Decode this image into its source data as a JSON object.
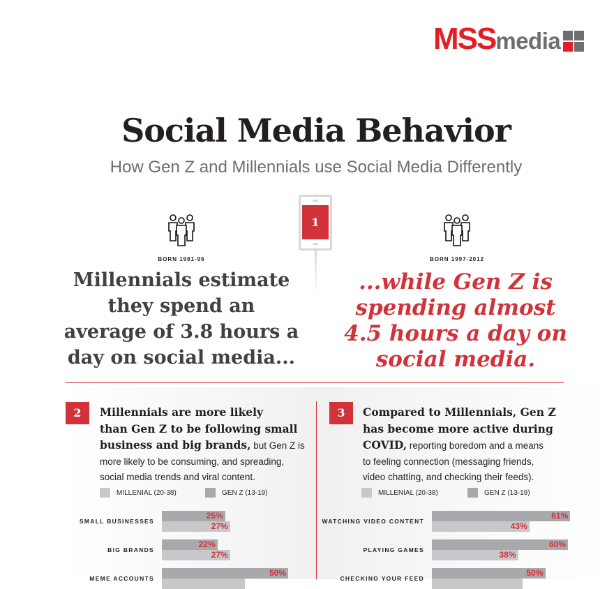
{
  "logo": {
    "text_red": "MSS",
    "text_gray": "media"
  },
  "header": {
    "title": "Social Media Behavior",
    "subtitle": "How Gen Z and Millennials use Social Media Differently"
  },
  "section1": {
    "number": "1",
    "left": {
      "born": "BORN 1981-96",
      "lines": [
        "Millennials estimate",
        "they spend an",
        "average of 3.8 hours a",
        "day on social media..."
      ]
    },
    "right": {
      "born": "BORN 1997-2012",
      "lines": [
        "...while Gen Z is",
        "spending almost",
        "4.5 hours a day on",
        "social media."
      ]
    }
  },
  "colors": {
    "accent": "#d2323a",
    "millennial": "#c7c8ca",
    "genz": "#a7a9ac"
  },
  "section2": {
    "number": "2",
    "bold": [
      "Millennials are more likely",
      "than Gen Z to be following small",
      "business and big brands,"
    ],
    "rest": [
      " but Gen Z is",
      "more likely to be consuming, and spreading,",
      "social media trends and viral content."
    ],
    "legend": [
      "MILLENIAL (20-38)",
      "GEN Z (13-19)"
    ]
  },
  "section3": {
    "number": "3",
    "bold": [
      "Compared to Millennials, Gen Z",
      "has become more active during",
      "COVID,"
    ],
    "rest": [
      " reporting boredom and a means",
      "to feeling connection (messaging friends,",
      "video chatting, and checking their feeds)."
    ],
    "legend": [
      "MILLENIAL (20-38)",
      "GEN Z (13-19)"
    ]
  },
  "chart_data": [
    {
      "type": "bar",
      "orientation": "horizontal",
      "categories": [
        "SMALL BUSINESSES",
        "BIG BRANDS",
        "MEME ACCOUNTS"
      ],
      "series": [
        {
          "name": "GEN Z (13-19)",
          "values": [
            25,
            22,
            50
          ],
          "labels": [
            "25%",
            "22%",
            "50%"
          ]
        },
        {
          "name": "MILLENIAL (20-38)",
          "values": [
            27,
            27,
            33
          ],
          "labels": [
            "27%",
            "27%",
            ""
          ]
        }
      ],
      "unit": "%",
      "legend": "top"
    },
    {
      "type": "bar",
      "orientation": "horizontal",
      "categories": [
        "WATCHING VIDEO CONTENT",
        "PLAYING GAMES",
        "CHECKING YOUR FEED"
      ],
      "series": [
        {
          "name": "GEN Z (13-19)",
          "values": [
            61,
            60,
            50
          ],
          "labels": [
            "61%",
            "60%",
            "50%"
          ]
        },
        {
          "name": "MILLENIAL (20-38)",
          "values": [
            43,
            38,
            40
          ],
          "labels": [
            "43%",
            "38%",
            ""
          ]
        }
      ],
      "unit": "%",
      "legend": "top"
    }
  ]
}
